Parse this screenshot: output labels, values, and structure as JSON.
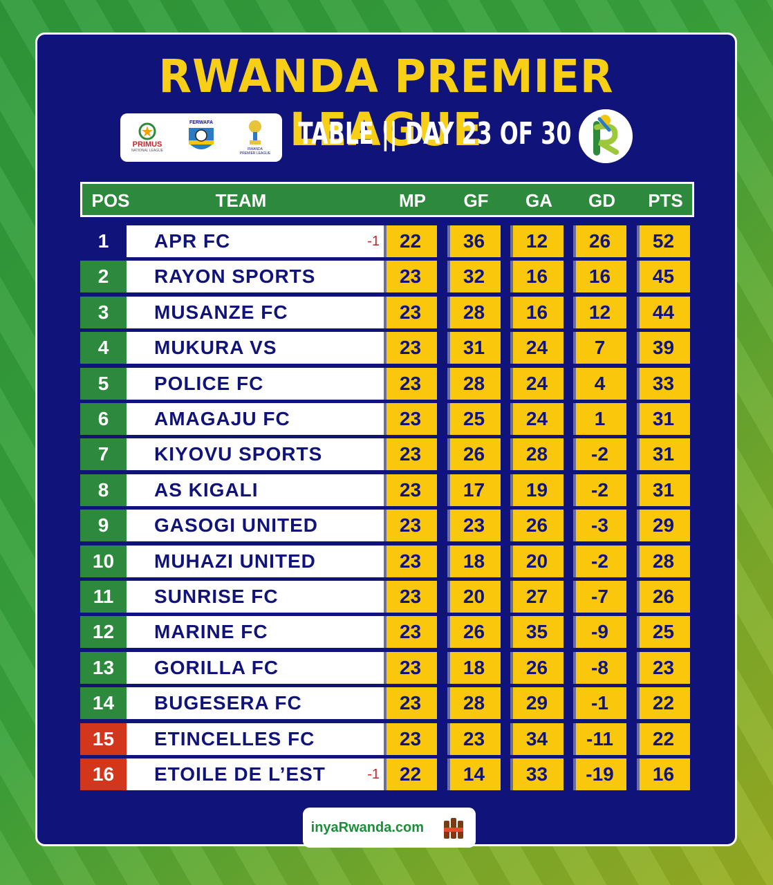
{
  "title": "RWANDA PREMIER LEAGUE",
  "subtitle": "TABLE || DAY 23 OF 30",
  "logos": {
    "primus_label": "PRIMUS",
    "primus_sub": "NATIONAL LEAGUE",
    "ferwafa_label": "FERWAFA",
    "rpl_label": "RWANDA",
    "rpl_sub": "PREMIER LEAGUE"
  },
  "columns": [
    "POS",
    "TEAM",
    "MP",
    "GF",
    "GA",
    "GD",
    "PTS"
  ],
  "colors": {
    "panel": "#10137a",
    "title": "#f7cf16",
    "safe_pos": "#2d8a3c",
    "relegation_pos": "#d2361b",
    "stat_cell": "#f9c70b"
  },
  "rows": [
    {
      "pos": "1",
      "team": "APR FC",
      "note": "-1",
      "mp": "22",
      "gf": "36",
      "ga": "12",
      "gd": "26",
      "pts": "52",
      "zone": "leader"
    },
    {
      "pos": "2",
      "team": "RAYON SPORTS",
      "note": "",
      "mp": "23",
      "gf": "32",
      "ga": "16",
      "gd": "16",
      "pts": "45",
      "zone": "safe"
    },
    {
      "pos": "3",
      "team": "MUSANZE FC",
      "note": "",
      "mp": "23",
      "gf": "28",
      "ga": "16",
      "gd": "12",
      "pts": "44",
      "zone": "safe"
    },
    {
      "pos": "4",
      "team": "MUKURA VS",
      "note": "",
      "mp": "23",
      "gf": "31",
      "ga": "24",
      "gd": "7",
      "pts": "39",
      "zone": "safe"
    },
    {
      "pos": "5",
      "team": "POLICE FC",
      "note": "",
      "mp": "23",
      "gf": "28",
      "ga": "24",
      "gd": "4",
      "pts": "33",
      "zone": "safe"
    },
    {
      "pos": "6",
      "team": "AMAGAJU FC",
      "note": "",
      "mp": "23",
      "gf": "25",
      "ga": "24",
      "gd": "1",
      "pts": "31",
      "zone": "safe"
    },
    {
      "pos": "7",
      "team": "KIYOVU SPORTS",
      "note": "",
      "mp": "23",
      "gf": "26",
      "ga": "28",
      "gd": "-2",
      "pts": "31",
      "zone": "safe"
    },
    {
      "pos": "8",
      "team": "AS KIGALI",
      "note": "",
      "mp": "23",
      "gf": "17",
      "ga": "19",
      "gd": "-2",
      "pts": "31",
      "zone": "safe"
    },
    {
      "pos": "9",
      "team": "GASOGI UNITED",
      "note": "",
      "mp": "23",
      "gf": "23",
      "ga": "26",
      "gd": "-3",
      "pts": "29",
      "zone": "safe"
    },
    {
      "pos": "10",
      "team": "MUHAZI UNITED",
      "note": "",
      "mp": "23",
      "gf": "18",
      "ga": "20",
      "gd": "-2",
      "pts": "28",
      "zone": "safe"
    },
    {
      "pos": "11",
      "team": "SUNRISE FC",
      "note": "",
      "mp": "23",
      "gf": "20",
      "ga": "27",
      "gd": "-7",
      "pts": "26",
      "zone": "safe"
    },
    {
      "pos": "12",
      "team": "MARINE FC",
      "note": "",
      "mp": "23",
      "gf": "26",
      "ga": "35",
      "gd": "-9",
      "pts": "25",
      "zone": "safe"
    },
    {
      "pos": "13",
      "team": "GORILLA FC",
      "note": "",
      "mp": "23",
      "gf": "18",
      "ga": "26",
      "gd": "-8",
      "pts": "23",
      "zone": "safe"
    },
    {
      "pos": "14",
      "team": "BUGESERA FC",
      "note": "",
      "mp": "23",
      "gf": "28",
      "ga": "29",
      "gd": "-1",
      "pts": "22",
      "zone": "safe"
    },
    {
      "pos": "15",
      "team": "ETINCELLES FC",
      "note": "",
      "mp": "23",
      "gf": "23",
      "ga": "34",
      "gd": "-11",
      "pts": "22",
      "zone": "relegation"
    },
    {
      "pos": "16",
      "team": "ETOILE DE L’EST",
      "note": "-1",
      "mp": "22",
      "gf": "14",
      "ga": "33",
      "gd": "-19",
      "pts": "16",
      "zone": "relegation"
    }
  ],
  "footer": {
    "brand": "inyaRwanda.com"
  }
}
